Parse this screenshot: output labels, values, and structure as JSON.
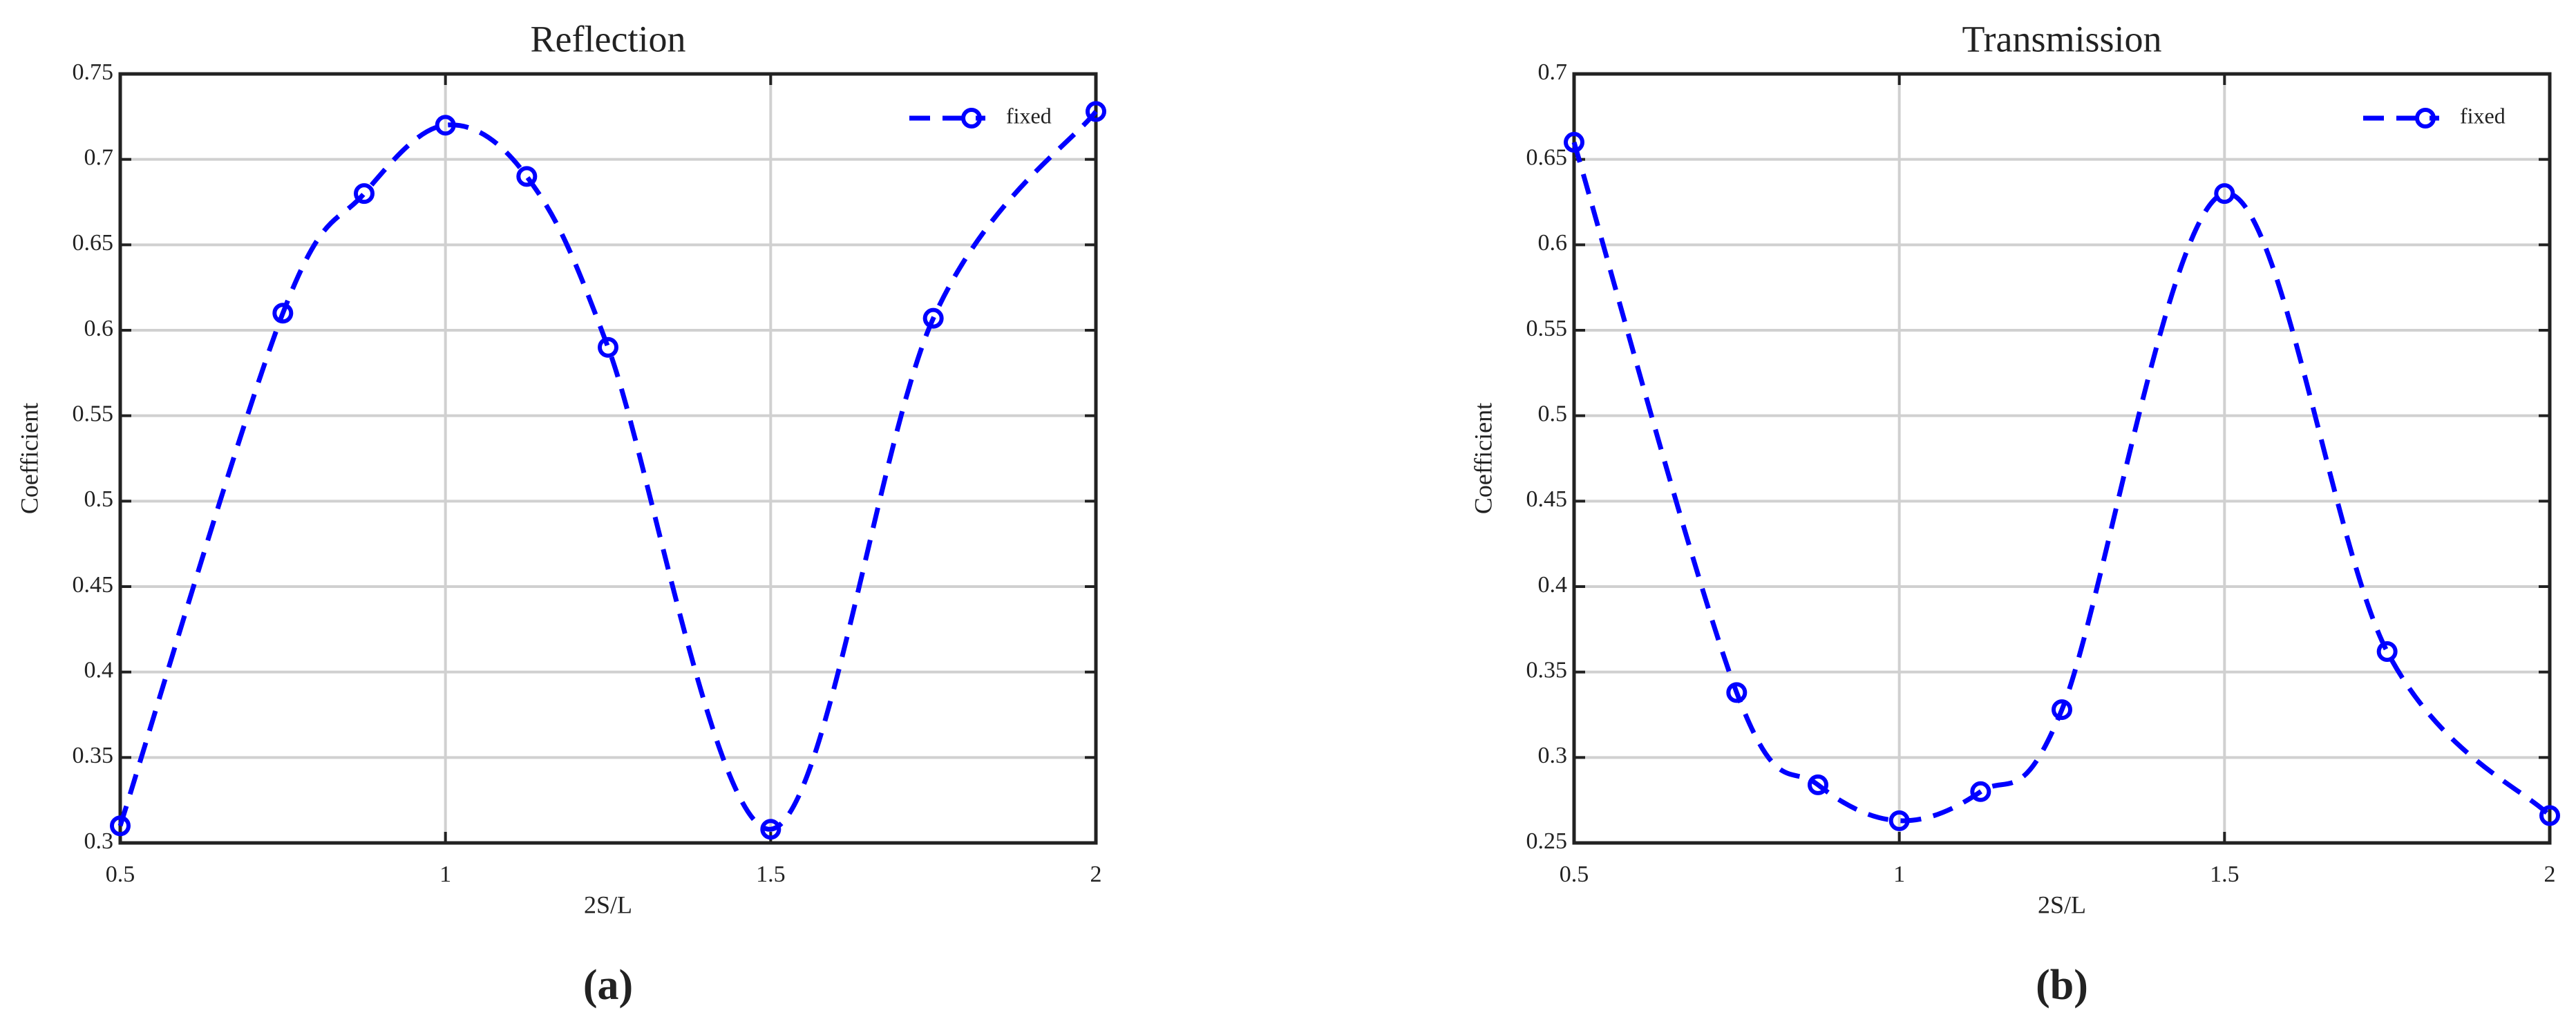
{
  "chart_data": [
    {
      "type": "line",
      "title": "Reflection",
      "xlabel": "2S/L",
      "ylabel": "Coefficient",
      "caption": "(a)",
      "x": [
        0.5,
        0.75,
        0.875,
        1,
        1.125,
        1.25,
        1.5,
        1.75,
        2
      ],
      "series": [
        {
          "name": "fixed",
          "color": "#0000ff",
          "values": [
            0.31,
            0.61,
            0.68,
            0.72,
            0.69,
            0.59,
            0.308,
            0.607,
            0.728
          ]
        }
      ],
      "xlim": [
        0.5,
        2
      ],
      "xticks": [
        0.5,
        1,
        1.5,
        2
      ],
      "ylim": [
        0.3,
        0.75
      ],
      "yticks": [
        0.3,
        0.35,
        0.4,
        0.45,
        0.5,
        0.55,
        0.6,
        0.65,
        0.7,
        0.75
      ],
      "grid": true,
      "legend": "upper-right"
    },
    {
      "type": "line",
      "title": "Transmission",
      "xlabel": "2S/L",
      "ylabel": "Coefficient",
      "caption": "(b)",
      "x": [
        0.5,
        0.75,
        0.875,
        1,
        1.125,
        1.25,
        1.5,
        1.75,
        2
      ],
      "series": [
        {
          "name": "fixed",
          "color": "#0000ff",
          "values": [
            0.66,
            0.338,
            0.284,
            0.263,
            0.28,
            0.328,
            0.63,
            0.362,
            0.266
          ]
        }
      ],
      "xlim": [
        0.5,
        2
      ],
      "xticks": [
        0.5,
        1,
        1.5,
        2
      ],
      "ylim": [
        0.25,
        0.7
      ],
      "yticks": [
        0.25,
        0.3,
        0.35,
        0.4,
        0.45,
        0.5,
        0.55,
        0.6,
        0.65,
        0.7
      ],
      "grid": true,
      "legend": "upper-right"
    }
  ]
}
